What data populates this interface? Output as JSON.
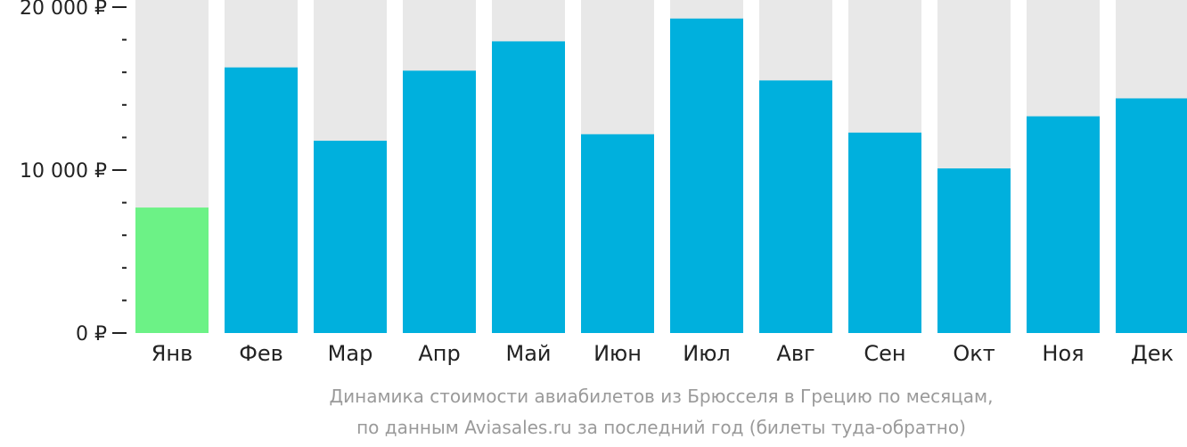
{
  "chart_data": {
    "type": "bar",
    "categories": [
      "Янв",
      "Фев",
      "Мар",
      "Апр",
      "Май",
      "Июн",
      "Июл",
      "Авг",
      "Сен",
      "Окт",
      "Ноя",
      "Дек"
    ],
    "values": [
      7700,
      16300,
      11800,
      16100,
      17900,
      12200,
      19300,
      15500,
      12300,
      10100,
      13300,
      14400
    ],
    "ylim": [
      0,
      20000
    ],
    "yticks": [
      {
        "value": 0,
        "label": "0 ₽"
      },
      {
        "value": 10000,
        "label": "10 000 ₽"
      },
      {
        "value": 20000,
        "label": "20 000 ₽"
      }
    ],
    "minor_tick_step": 2000,
    "highlight_index": 0,
    "colors": {
      "bar": "#00b0dd",
      "highlight": "#6cf286",
      "track": "#e8e8e8",
      "axis": "#222222"
    },
    "caption_lines": [
      "Динамика стоимости авиабилетов из Брюсселя в Грецию по месяцам,",
      "по данным Aviasales.ru за последний год (билеты туда-обратно)"
    ]
  }
}
